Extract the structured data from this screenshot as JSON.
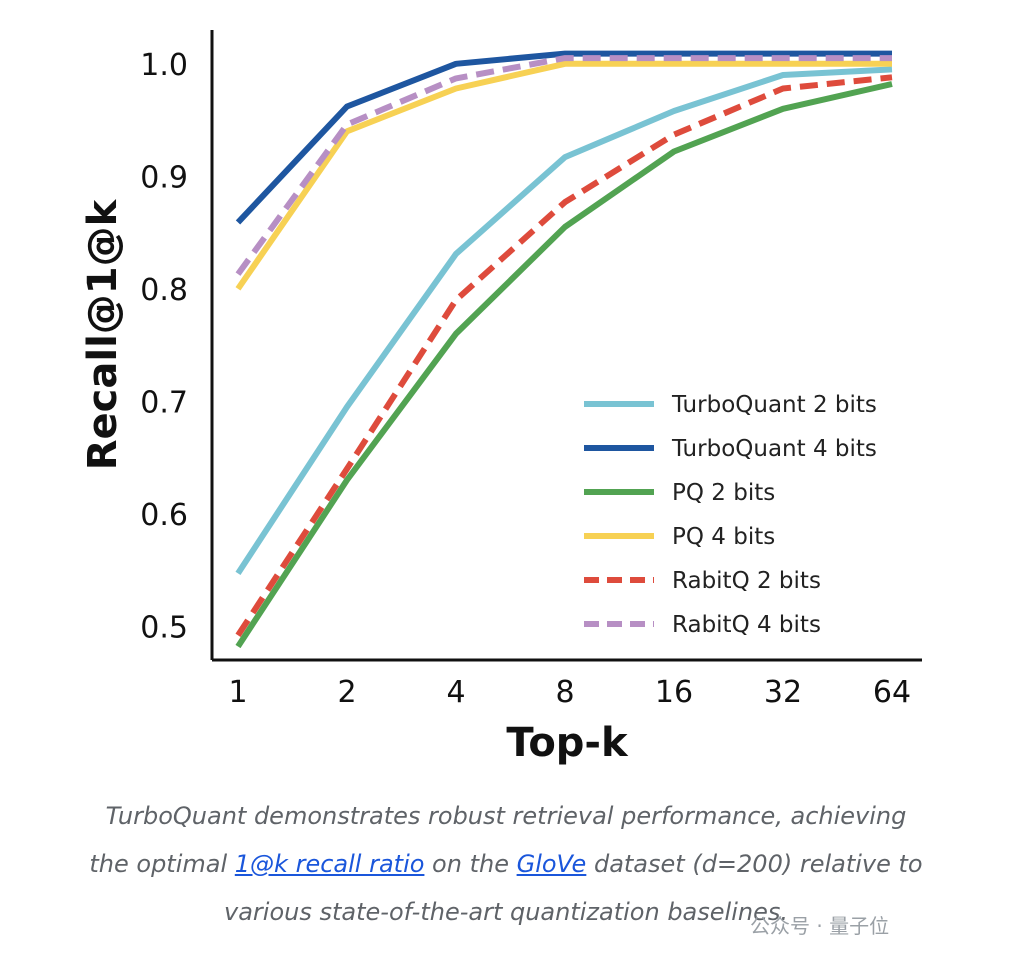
{
  "chart_data": {
    "type": "line",
    "xlabel": "Top-k",
    "ylabel": "Recall@1@k",
    "categories": [
      "1",
      "2",
      "4",
      "8",
      "16",
      "32",
      "64"
    ],
    "yticks": [
      "0.5",
      "0.6",
      "0.7",
      "0.8",
      "0.9",
      "1.0"
    ],
    "ylim": [
      0.47,
      1.03
    ],
    "grid": false,
    "legend_position": "bottom-right",
    "series": [
      {
        "name": "TurboQuant 2 bits",
        "color": "#79c3d3",
        "dash": false,
        "values": [
          0.547,
          0.695,
          0.831,
          0.917,
          0.958,
          0.99,
          0.995
        ]
      },
      {
        "name": "TurboQuant 4 bits",
        "color": "#1e56a0",
        "dash": false,
        "values": [
          0.859,
          0.962,
          1.0,
          1.009,
          1.009,
          1.009,
          1.009
        ]
      },
      {
        "name": "PQ 2 bits",
        "color": "#52a352",
        "dash": false,
        "values": [
          0.482,
          0.63,
          0.76,
          0.855,
          0.922,
          0.96,
          0.982
        ]
      },
      {
        "name": "PQ 4 bits",
        "color": "#f7d154",
        "dash": false,
        "values": [
          0.8,
          0.94,
          0.978,
          1.0,
          1.0,
          1.0,
          1.0
        ]
      },
      {
        "name": "RabitQ 2 bits",
        "color": "#de4b3c",
        "dash": true,
        "values": [
          0.492,
          0.64,
          0.79,
          0.877,
          0.937,
          0.978,
          0.988
        ]
      },
      {
        "name": "RabitQ 4 bits",
        "color": "#b78fc4",
        "dash": true,
        "values": [
          0.813,
          0.946,
          0.987,
          1.005,
          1.005,
          1.005,
          1.005
        ]
      }
    ]
  },
  "caption": {
    "line1": "TurboQuant demonstrates robust retrieval performance, achieving",
    "line2_before": "the optimal ",
    "line2_link1": "1@k recall ratio",
    "line2_middle": " on the ",
    "line2_link2": "GloVe",
    "line2_after": " dataset (d=200) relative to",
    "line3": "various state-of-the-art quantization baselines."
  },
  "watermark": "公众号 · 量子位"
}
